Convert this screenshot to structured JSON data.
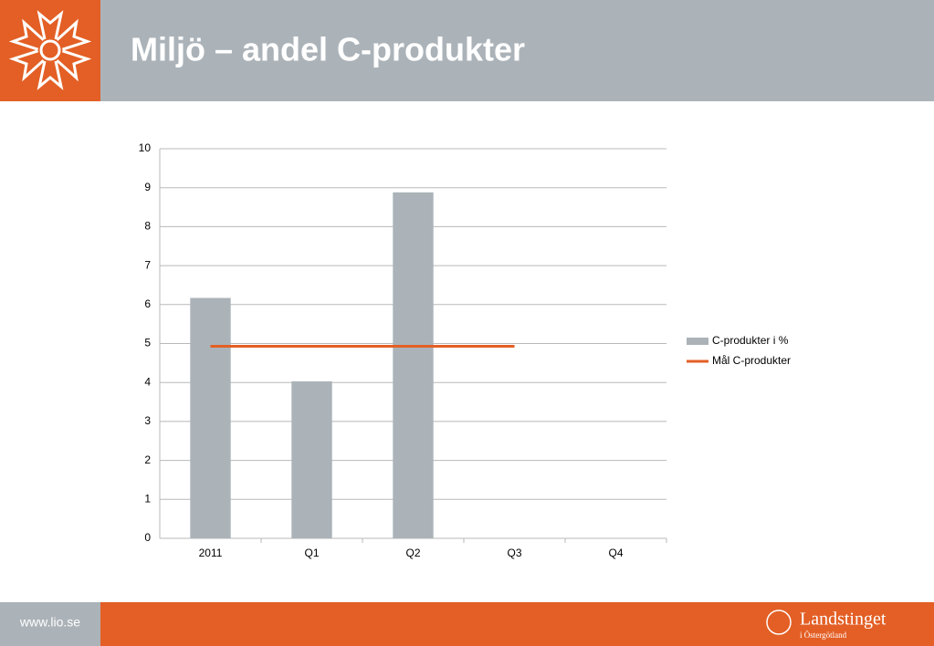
{
  "chart_data": {
    "type": "bar",
    "title": "Miljö – andel C-produkter",
    "categories": [
      "2011",
      "Q1",
      "Q2",
      "Q3",
      "Q4"
    ],
    "series": [
      {
        "name": "C-produkter i %",
        "type": "bar",
        "color": "#abb3b9",
        "values": [
          6.17,
          4.03,
          8.88,
          null,
          null
        ]
      },
      {
        "name": "Mål C-produkter",
        "type": "line",
        "color": "#e35f25",
        "values": [
          4.93,
          4.93,
          4.93,
          4.93,
          null
        ]
      }
    ],
    "ylim": [
      0,
      10
    ],
    "yticks": [
      0,
      1,
      2,
      3,
      4,
      5,
      6,
      7,
      8,
      9,
      10
    ],
    "grid": true,
    "legend": "right"
  },
  "footer": {
    "url": "www.lio.se",
    "brand": "Landstinget",
    "region": "i Östergötland"
  }
}
